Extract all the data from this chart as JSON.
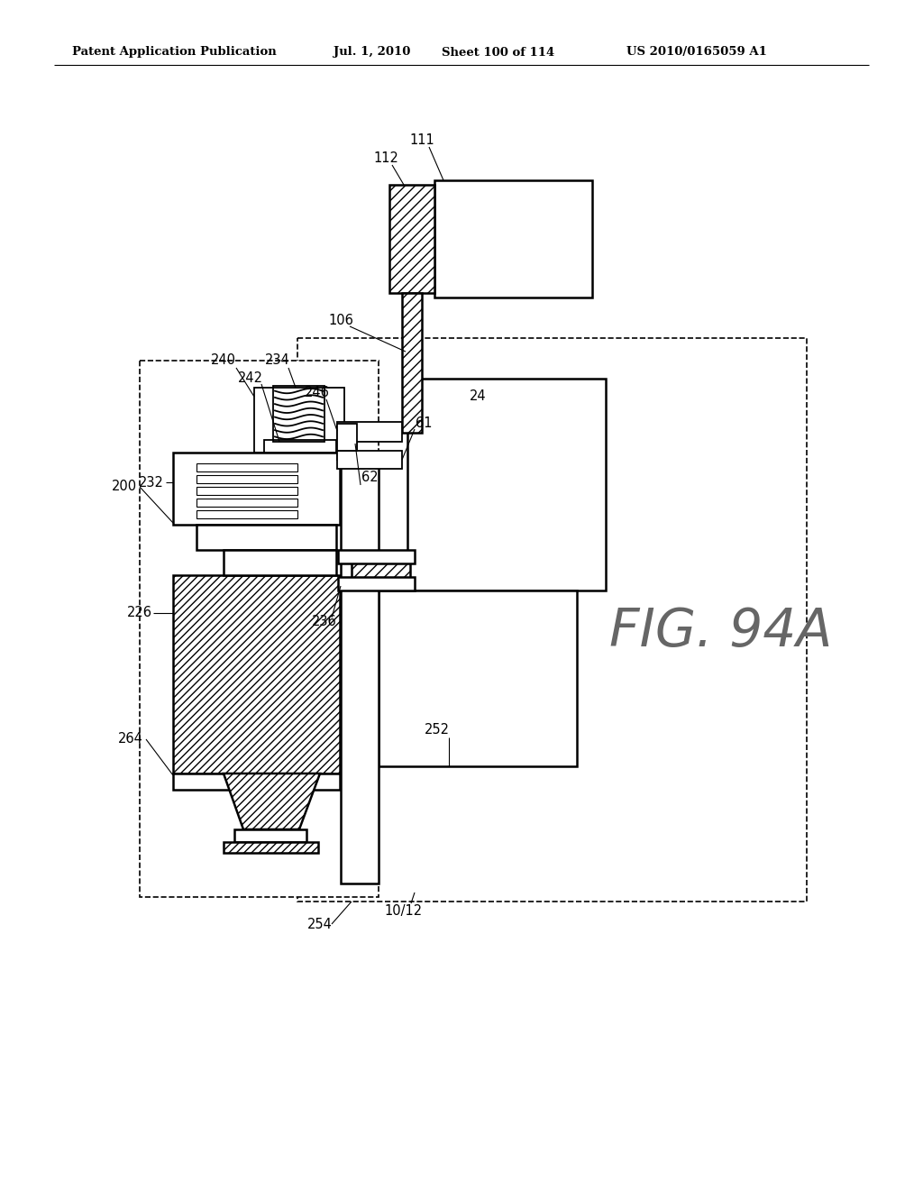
{
  "title_line1": "Patent Application Publication",
  "title_line2": "Jul. 1, 2010",
  "title_line3": "Sheet 100 of 114",
  "title_line4": "US 2010/0165059 A1",
  "fig_label": "FIG. 94A",
  "background_color": "#ffffff",
  "line_color": "#000000"
}
